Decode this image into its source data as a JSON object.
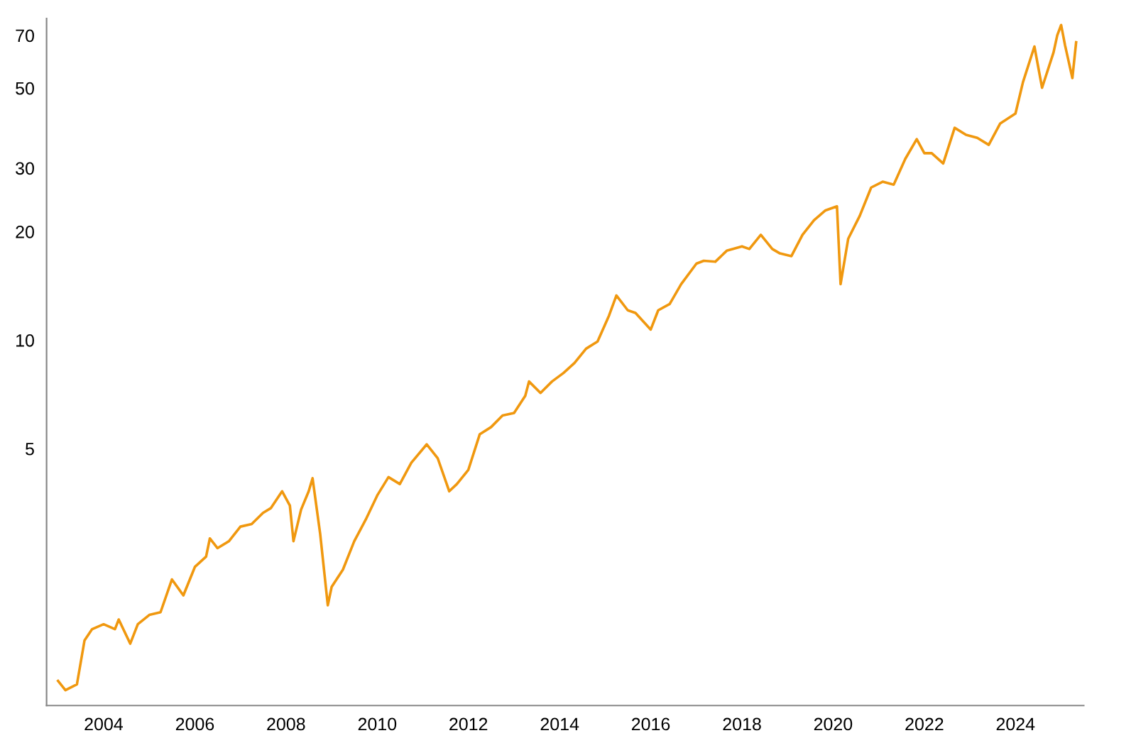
{
  "chart_data": {
    "type": "line",
    "log": true,
    "grid": false,
    "marker": "none",
    "line_style": "solid",
    "x": [
      "2003-01",
      "2003-03",
      "2003-06",
      "2003-08",
      "2003-10",
      "2004-01",
      "2004-04",
      "2004-05",
      "2004-08",
      "2004-10",
      "2005-01",
      "2005-04",
      "2005-07",
      "2005-10",
      "2006-01",
      "2006-04",
      "2006-05",
      "2006-07",
      "2006-10",
      "2007-01",
      "2007-04",
      "2007-07",
      "2007-09",
      "2007-12",
      "2008-02",
      "2008-03",
      "2008-05",
      "2008-07",
      "2008-08",
      "2008-10",
      "2008-12",
      "2009-01",
      "2009-04",
      "2009-07",
      "2009-10",
      "2010-01",
      "2010-04",
      "2010-07",
      "2010-10",
      "2011-02",
      "2011-05",
      "2011-08",
      "2011-10",
      "2012-01",
      "2012-04",
      "2012-07",
      "2012-10",
      "2013-01",
      "2013-04",
      "2013-05",
      "2013-08",
      "2013-11",
      "2014-02",
      "2014-05",
      "2014-08",
      "2014-11",
      "2015-02",
      "2015-04",
      "2015-07",
      "2015-09",
      "2016-01",
      "2016-03",
      "2016-06",
      "2016-09",
      "2017-01",
      "2017-03",
      "2017-06",
      "2017-09",
      "2018-01",
      "2018-03",
      "2018-06",
      "2018-09",
      "2018-11",
      "2019-02",
      "2019-05",
      "2019-08",
      "2019-11",
      "2020-02",
      "2020-03",
      "2020-05",
      "2020-08",
      "2020-11",
      "2021-02",
      "2021-05",
      "2021-08",
      "2021-11",
      "2022-01",
      "2022-03",
      "2022-06",
      "2022-09",
      "2022-12",
      "2023-03",
      "2023-06",
      "2023-09",
      "2024-01",
      "2024-03",
      "2024-06",
      "2024-08",
      "2024-11",
      "2024-12",
      "2025-01",
      "2025-02",
      "2025-04",
      "2025-05"
    ],
    "series": [
      {
        "color": "#f0980f",
        "values": [
          1.135,
          1.07,
          1.11,
          1.47,
          1.58,
          1.63,
          1.58,
          1.68,
          1.44,
          1.63,
          1.73,
          1.76,
          2.17,
          1.96,
          2.35,
          2.51,
          2.82,
          2.65,
          2.77,
          3.04,
          3.09,
          3.32,
          3.42,
          3.81,
          3.48,
          2.77,
          3.39,
          3.81,
          4.14,
          2.9,
          1.84,
          2.07,
          2.31,
          2.77,
          3.18,
          3.71,
          4.17,
          3.99,
          4.57,
          5.14,
          4.7,
          3.81,
          3.99,
          4.37,
          5.48,
          5.74,
          6.18,
          6.28,
          7.01,
          7.68,
          7.14,
          7.68,
          8.11,
          8.65,
          9.47,
          9.91,
          11.7,
          13.3,
          12.1,
          11.9,
          10.7,
          12.1,
          12.6,
          14.3,
          16.3,
          16.6,
          16.5,
          17.7,
          18.2,
          17.9,
          19.6,
          17.9,
          17.4,
          17.1,
          19.6,
          21.5,
          22.9,
          23.5,
          14.3,
          19.1,
          22.1,
          26.5,
          27.5,
          27.0,
          31.8,
          36.1,
          33.0,
          33.0,
          30.9,
          38.8,
          37.1,
          36.4,
          34.8,
          39.9,
          42.5,
          51.9,
          65.2,
          50.1,
          62.8,
          70.1,
          74.8,
          65.8,
          53.3,
          67.0
        ]
      }
    ],
    "xlim": [
      "2002-10",
      "2025-07"
    ],
    "ylim": [
      0.97,
      78
    ],
    "xticks": [
      {
        "value": "2004",
        "label": "2004"
      },
      {
        "value": "2006",
        "label": "2006"
      },
      {
        "value": "2008",
        "label": "2008"
      },
      {
        "value": "2010",
        "label": "2010"
      },
      {
        "value": "2012",
        "label": "2012"
      },
      {
        "value": "2014",
        "label": "2014"
      },
      {
        "value": "2016",
        "label": "2016"
      },
      {
        "value": "2018",
        "label": "2018"
      },
      {
        "value": "2020",
        "label": "2020"
      },
      {
        "value": "2022",
        "label": "2022"
      },
      {
        "value": "2024",
        "label": "2024"
      }
    ],
    "yticks": [
      5,
      10,
      20,
      30,
      50,
      70
    ]
  }
}
